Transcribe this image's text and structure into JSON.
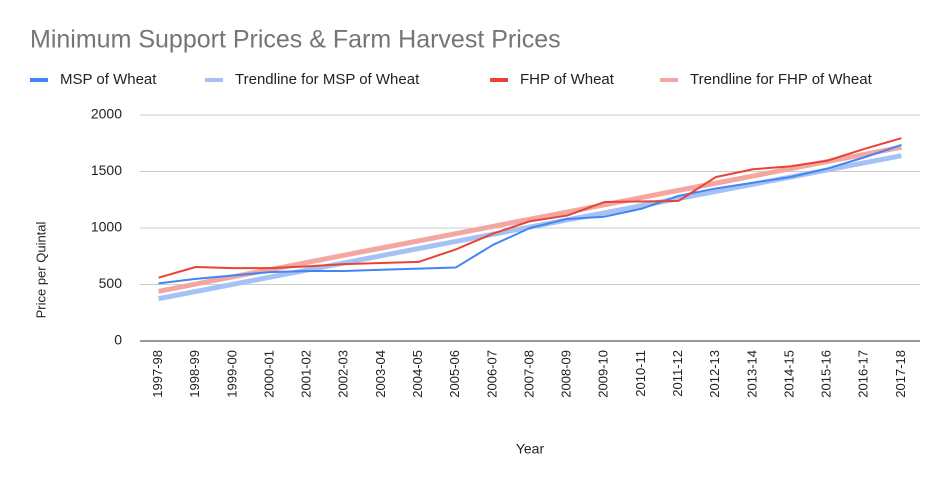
{
  "chart_data": {
    "type": "line",
    "title": "Minimum Support Prices & Farm Harvest Prices",
    "x_label": "Year",
    "y_label": "Price per Quintal",
    "categories": [
      "1997-98",
      "1998-99",
      "1999-00",
      "2000-01",
      "2001-02",
      "2002-03",
      "2003-04",
      "2004-05",
      "2005-06",
      "2006-07",
      "2007-08",
      "2008-09",
      "2009-10",
      "2010-11",
      "2011-12",
      "2012-13",
      "2013-14",
      "2014-15",
      "2015-16",
      "2016-17",
      "2017-18"
    ],
    "series": [
      {
        "name": "MSP of Wheat",
        "color": "#4285f4",
        "values": [
          510,
          550,
          580,
          610,
          620,
          620,
          630,
          640,
          650,
          850,
          1000,
          1080,
          1100,
          1170,
          1285,
          1350,
          1400,
          1450,
          1525,
          1625,
          1735
        ]
      },
      {
        "name": "Trendline for MSP of Wheat",
        "color": "#a4c2f4",
        "values": [
          375,
          438,
          502,
          565,
          628,
          691,
          755,
          818,
          881,
          944,
          1008,
          1071,
          1134,
          1197,
          1261,
          1324,
          1387,
          1450,
          1514,
          1577,
          1640
        ]
      },
      {
        "name": "FHP of Wheat",
        "color": "#ea4335",
        "values": [
          560,
          655,
          645,
          645,
          660,
          680,
          690,
          700,
          810,
          950,
          1060,
          1110,
          1230,
          1235,
          1240,
          1450,
          1520,
          1545,
          1595,
          1700,
          1795
        ]
      },
      {
        "name": "Trendline for FHP of Wheat",
        "color": "#f4a7a0",
        "values": [
          440,
          504,
          568,
          631,
          695,
          759,
          823,
          886,
          950,
          1014,
          1078,
          1141,
          1205,
          1269,
          1333,
          1396,
          1460,
          1524,
          1588,
          1651,
          1715
        ]
      }
    ],
    "ylim": [
      0,
      2000
    ],
    "yticks": [
      0,
      500,
      1000,
      1500,
      2000
    ],
    "grid": true
  }
}
